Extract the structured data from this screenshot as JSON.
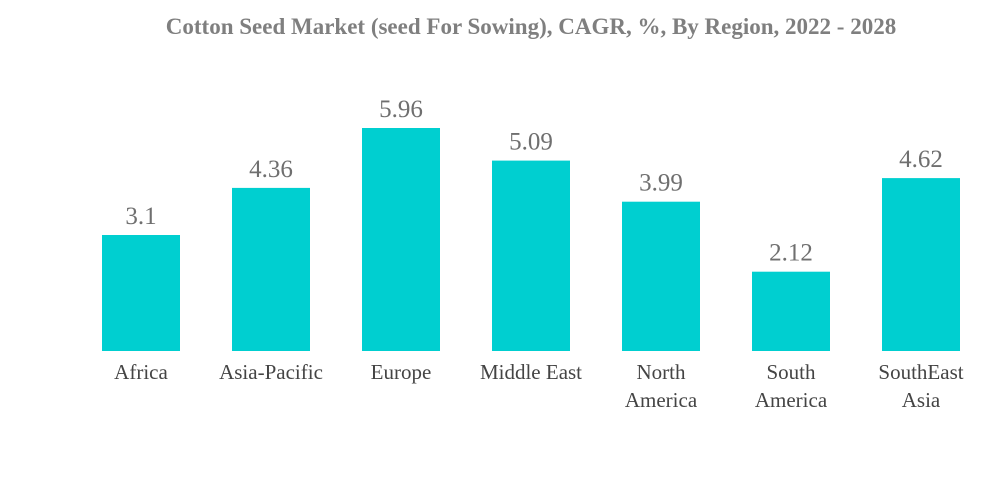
{
  "chart_data": {
    "type": "bar",
    "title": "Cotton Seed Market (seed For Sowing), CAGR, %, By Region, 2022 - 2028",
    "categories": [
      "Africa",
      "Asia-Pacific",
      "Europe",
      "Middle East",
      "North America",
      "South America",
      "SouthEast Asia"
    ],
    "category_lines": [
      [
        "Africa"
      ],
      [
        "Asia-Pacific"
      ],
      [
        "Europe"
      ],
      [
        "Middle East"
      ],
      [
        "North",
        "America"
      ],
      [
        "South",
        "America"
      ],
      [
        "SouthEast",
        "Asia"
      ]
    ],
    "values": [
      3.1,
      4.36,
      5.96,
      5.09,
      3.99,
      2.12,
      4.62
    ],
    "value_labels": [
      "3.1",
      "4.36",
      "5.96",
      "5.09",
      "3.99",
      "2.12",
      "4.62"
    ],
    "xlabel": "",
    "ylabel": "",
    "ylim": [
      0,
      5.96
    ],
    "grid": false,
    "legend": "none",
    "bar_color": "#00cfd0"
  }
}
